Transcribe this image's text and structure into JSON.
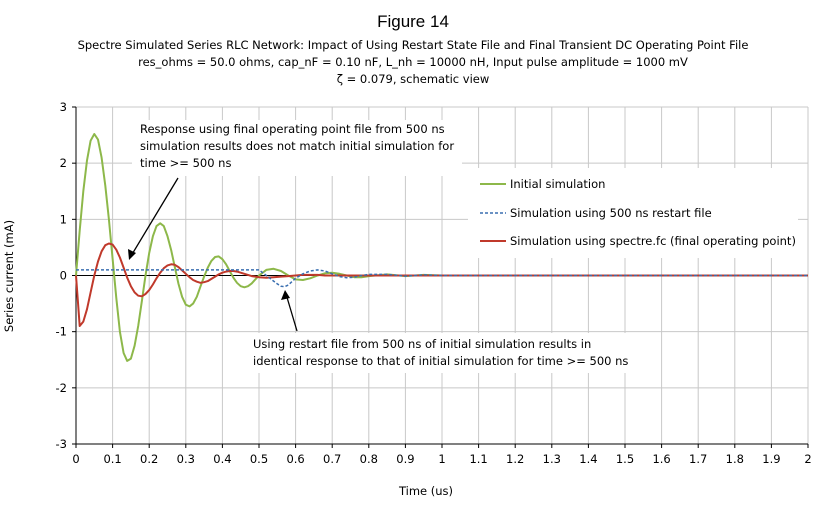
{
  "header": {
    "figure_title": "Figure 14",
    "subtitle_line1": "Spectre Simulated Series RLC Network: Impact of Using Restart State File and  Final Transient DC Operating Point File",
    "subtitle_line2": "res_ohms = 50.0 ohms, cap_nF = 0.10 nF, L_nh = 10000 nH, Input pulse amplitude = 1000 mV",
    "subtitle_line3": "ζ  = 0.079, schematic view"
  },
  "annotations": {
    "top_line1": "Response using final operating point file from 500 ns",
    "top_line2": "simulation results does not match initial simulation for",
    "top_line3": "time >= 500 ns",
    "bottom_line1": "Using restart file from 500 ns of initial simulation results in",
    "bottom_line2": "identical response to that of initial simulation for time >= 500 ns"
  },
  "colors": {
    "initial": "#8db84a",
    "restart": "#3a6fb0",
    "fc": "#c0392b",
    "grid": "#c8c8c8"
  },
  "chart_data": {
    "type": "line",
    "xlabel": "Time (us)",
    "ylabel": "Series current (mA)",
    "xlim": [
      0,
      2
    ],
    "ylim": [
      -3,
      3
    ],
    "x_ticks": [
      "0",
      "0.1",
      "0.2",
      "0.3",
      "0.4",
      "0.5",
      "0.6",
      "0.7",
      "0.8",
      "0.9",
      "1",
      "1.1",
      "1.2",
      "1.3",
      "1.4",
      "1.5",
      "1.6",
      "1.7",
      "1.8",
      "1.9",
      "2"
    ],
    "y_ticks": [
      "3",
      "2",
      "1",
      "0",
      "-1",
      "-2",
      "-3"
    ],
    "grid": true,
    "legend_position": "right",
    "series": [
      {
        "name": "Initial simulation",
        "style": "solid",
        "x": [
          0,
          0.01,
          0.02,
          0.03,
          0.04,
          0.05,
          0.06,
          0.07,
          0.08,
          0.09,
          0.1,
          0.11,
          0.12,
          0.13,
          0.14,
          0.15,
          0.16,
          0.17,
          0.18,
          0.19,
          0.2,
          0.21,
          0.22,
          0.23,
          0.24,
          0.25,
          0.26,
          0.27,
          0.28,
          0.29,
          0.3,
          0.31,
          0.32,
          0.33,
          0.34,
          0.35,
          0.36,
          0.37,
          0.38,
          0.39,
          0.4,
          0.41,
          0.42,
          0.43,
          0.44,
          0.45,
          0.46,
          0.47,
          0.48,
          0.49,
          0.5,
          0.52,
          0.54,
          0.56,
          0.58,
          0.6,
          0.62,
          0.64,
          0.66,
          0.68,
          0.7,
          0.72,
          0.74,
          0.76,
          0.78,
          0.8,
          0.85,
          0.9,
          0.95,
          1.0,
          1.1,
          1.2,
          1.3,
          1.4,
          1.5,
          1.6,
          1.7,
          1.8,
          1.9,
          2.0
        ],
        "values": [
          0,
          0.8,
          1.5,
          2.05,
          2.4,
          2.52,
          2.42,
          2.1,
          1.6,
          1.0,
          0.3,
          -0.4,
          -1.0,
          -1.38,
          -1.52,
          -1.48,
          -1.25,
          -0.9,
          -0.45,
          0.0,
          0.4,
          0.7,
          0.88,
          0.93,
          0.88,
          0.7,
          0.45,
          0.15,
          -0.15,
          -0.38,
          -0.52,
          -0.55,
          -0.5,
          -0.38,
          -0.2,
          -0.02,
          0.14,
          0.26,
          0.33,
          0.34,
          0.29,
          0.2,
          0.08,
          -0.04,
          -0.13,
          -0.19,
          -0.21,
          -0.19,
          -0.14,
          -0.07,
          0.0,
          0.1,
          0.12,
          0.08,
          0.0,
          -0.07,
          -0.08,
          -0.05,
          0.0,
          0.04,
          0.05,
          0.03,
          0.0,
          -0.03,
          -0.03,
          -0.01,
          0.02,
          -0.01,
          0.01,
          0.0,
          0.0,
          0.0,
          0.0,
          0.0,
          0.0,
          0.0,
          0.0,
          0.0,
          0.0,
          0.0
        ]
      },
      {
        "name": "Simulation using 500 ns restart file",
        "style": "dashed",
        "x": [
          0,
          0.5,
          0.51,
          0.52,
          0.53,
          0.54,
          0.55,
          0.56,
          0.57,
          0.58,
          0.59,
          0.6,
          0.62,
          0.64,
          0.66,
          0.68,
          0.7,
          0.72,
          0.74,
          0.76,
          0.78,
          0.8,
          0.85,
          0.9,
          0.95,
          1.0,
          1.1,
          1.2,
          1.3,
          1.4,
          1.5,
          1.6,
          1.7,
          1.8,
          1.9,
          2.0
        ],
        "values": [
          0.1,
          0.1,
          0.05,
          0.0,
          -0.05,
          -0.1,
          -0.15,
          -0.19,
          -0.2,
          -0.17,
          -0.11,
          -0.05,
          0.03,
          0.08,
          0.1,
          0.08,
          0.03,
          -0.02,
          -0.04,
          -0.03,
          0.0,
          0.02,
          0.02,
          -0.01,
          0.01,
          0.0,
          0.0,
          0.0,
          0.0,
          0.0,
          0.0,
          0.0,
          0.0,
          0.0,
          0.0,
          0.0
        ]
      },
      {
        "name": "Simulation using spectre.fc (final operating point)",
        "style": "solid",
        "x": [
          0,
          0.01,
          0.02,
          0.03,
          0.04,
          0.05,
          0.06,
          0.07,
          0.08,
          0.09,
          0.1,
          0.11,
          0.12,
          0.13,
          0.14,
          0.15,
          0.16,
          0.17,
          0.18,
          0.19,
          0.2,
          0.21,
          0.22,
          0.23,
          0.24,
          0.25,
          0.26,
          0.27,
          0.28,
          0.29,
          0.3,
          0.31,
          0.32,
          0.33,
          0.34,
          0.35,
          0.36,
          0.37,
          0.38,
          0.39,
          0.4,
          0.41,
          0.42,
          0.43,
          0.44,
          0.45,
          0.46,
          0.47,
          0.48,
          0.49,
          0.5,
          0.52,
          0.54,
          0.56,
          0.58,
          0.6,
          0.62,
          0.64,
          0.66,
          0.68,
          0.7,
          0.75,
          0.8,
          0.9,
          1.0,
          1.2,
          1.4,
          1.6,
          1.8,
          2.0
        ],
        "values": [
          0,
          -0.9,
          -0.82,
          -0.6,
          -0.3,
          0.0,
          0.25,
          0.43,
          0.54,
          0.57,
          0.55,
          0.46,
          0.32,
          0.14,
          -0.04,
          -0.19,
          -0.3,
          -0.36,
          -0.37,
          -0.33,
          -0.26,
          -0.16,
          -0.05,
          0.05,
          0.13,
          0.18,
          0.2,
          0.19,
          0.15,
          0.09,
          0.03,
          -0.03,
          -0.08,
          -0.11,
          -0.13,
          -0.12,
          -0.1,
          -0.06,
          -0.02,
          0.02,
          0.05,
          0.07,
          0.08,
          0.08,
          0.07,
          0.05,
          0.03,
          0.01,
          -0.01,
          -0.02,
          -0.03,
          -0.04,
          -0.03,
          -0.02,
          -0.01,
          0.0,
          0.01,
          0.01,
          0.01,
          0.0,
          0.0,
          0.0,
          0.0,
          0.0,
          0.0,
          0.0,
          0.0,
          0.0,
          0.0,
          0.0
        ]
      }
    ]
  }
}
